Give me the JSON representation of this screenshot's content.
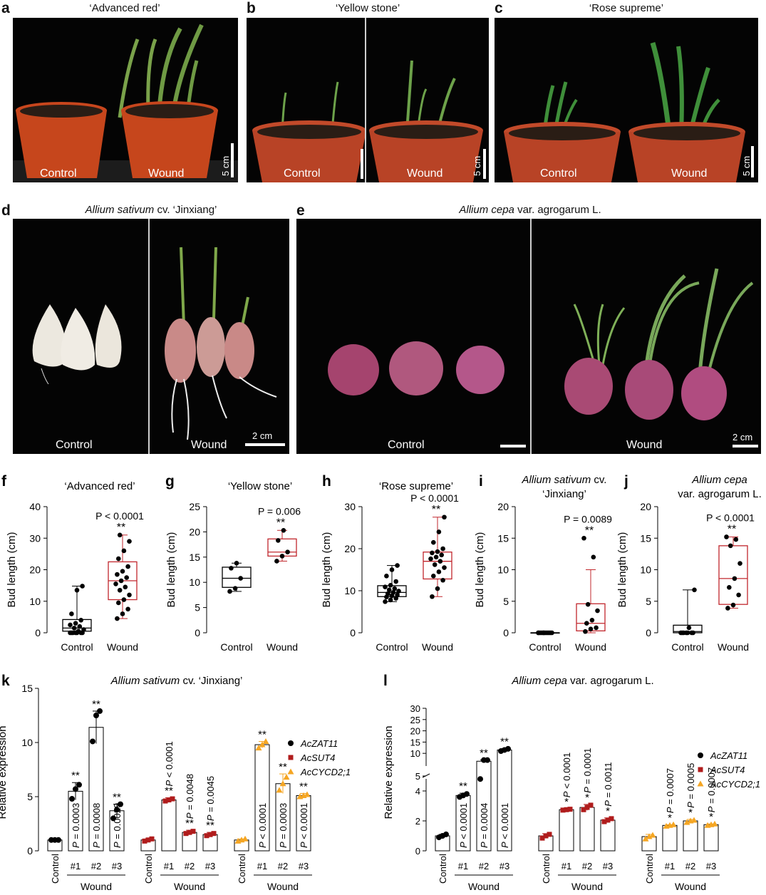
{
  "photos": {
    "a": {
      "letter": "a",
      "title": "‘Advanced red’",
      "labels": [
        "Control",
        "Wound"
      ],
      "scale": "5 cm"
    },
    "b": {
      "letter": "b",
      "title": "‘Yellow stone’",
      "labels": [
        "Control",
        "Wound"
      ],
      "scale": "5 cm"
    },
    "c": {
      "letter": "c",
      "title": "‘Rose supreme’",
      "labels": [
        "Control",
        "Wound"
      ],
      "scale": "5 cm"
    },
    "d": {
      "letter": "d",
      "title_italic": "Allium sativum",
      "title_rest": " cv. ‘Jinxiang’",
      "labels": [
        "Control",
        "Wound"
      ],
      "scale": "2 cm"
    },
    "e": {
      "letter": "e",
      "title_italic": "Allium cepa",
      "title_rest": " var. agrogarum L.",
      "labels": [
        "Control",
        "Wound"
      ],
      "scale": "2 cm"
    }
  },
  "colors": {
    "zat11": "#000000",
    "sut4": "#b01c1c",
    "cycd2": "#f5a623",
    "box_control": "#000000",
    "box_wound": "#c1272d"
  },
  "chart_data": [
    {
      "panel": "f",
      "type": "box",
      "title": "‘Advanced red’",
      "ylabel": "Bud length (cm)",
      "ylim": [
        0,
        40
      ],
      "yticks": [
        0,
        10,
        20,
        30,
        40
      ],
      "categories": [
        "Control",
        "Wound"
      ],
      "boxes": [
        {
          "q1": 0.5,
          "median": 1.5,
          "q3": 4.2,
          "min": 0,
          "max": 14.8
        },
        {
          "q1": 10.5,
          "median": 16.5,
          "q3": 22.5,
          "min": 4.5,
          "max": 31
        }
      ],
      "points": [
        [
          0,
          0,
          0,
          0,
          0,
          0,
          0,
          0.5,
          1,
          1.5,
          2,
          2.5,
          3,
          4,
          6,
          13.5,
          14.8
        ],
        [
          4.5,
          6,
          7.5,
          9.5,
          10.5,
          12,
          13.5,
          14.5,
          15.5,
          16.5,
          17.5,
          18.5,
          19.5,
          21,
          23.5,
          26,
          29,
          31
        ]
      ],
      "annotation": {
        "p": "P < 0.0001",
        "stars": "**"
      }
    },
    {
      "panel": "g",
      "type": "box",
      "title": "‘Yellow stone’",
      "ylabel": "Bud length (cm)",
      "ylim": [
        0,
        25
      ],
      "yticks": [
        0,
        5,
        10,
        15,
        20,
        25
      ],
      "categories": [
        "Control",
        "Wound"
      ],
      "boxes": [
        {
          "q1": 9,
          "median": 10.8,
          "q3": 13,
          "min": 8.2,
          "max": 13.8
        },
        {
          "q1": 15.2,
          "median": 16,
          "q3": 18.6,
          "min": 14.2,
          "max": 20.3
        }
      ],
      "points": [
        [
          8.2,
          8.8,
          10.8,
          12.8,
          13.8
        ],
        [
          14.2,
          15.2,
          16,
          18.3,
          20.3
        ]
      ],
      "annotation": {
        "p": "P = 0.006",
        "stars": "**"
      }
    },
    {
      "panel": "h",
      "type": "box",
      "title": "‘Rose supreme’",
      "ylabel": "Bud length (cm)",
      "ylim": [
        0,
        30
      ],
      "yticks": [
        0,
        10,
        20,
        30
      ],
      "categories": [
        "Control",
        "Wound"
      ],
      "boxes": [
        {
          "q1": 8.6,
          "median": 9.6,
          "q3": 11.2,
          "min": 7.4,
          "max": 16
        },
        {
          "q1": 12.8,
          "median": 17,
          "q3": 19.2,
          "min": 8.6,
          "max": 27.5
        }
      ],
      "points": [
        [
          7.4,
          7.8,
          8.2,
          8.5,
          8.8,
          9,
          9.3,
          9.6,
          9.9,
          10.2,
          10.5,
          10.9,
          11.3,
          12.2,
          13.5,
          15,
          16
        ],
        [
          8.6,
          10.5,
          12.5,
          13.5,
          14.5,
          15.5,
          16.2,
          17,
          17.6,
          18,
          18.5,
          19,
          19.3,
          20,
          21.5,
          24,
          27.5
        ]
      ],
      "annotation": {
        "p": "P < 0.0001",
        "stars": "**"
      }
    },
    {
      "panel": "i",
      "type": "box",
      "title_italic": "Allium sativum",
      "title_rest": " cv.",
      "title_line2": "‘Jinxiang’",
      "ylabel": "Bud length (cm)",
      "ylim": [
        0,
        20
      ],
      "yticks": [
        0,
        5,
        10,
        15,
        20
      ],
      "categories": [
        "Control",
        "Wound"
      ],
      "boxes": [
        {
          "q1": 0,
          "median": 0,
          "q3": 0,
          "min": 0,
          "max": 0
        },
        {
          "q1": 0.3,
          "median": 1.5,
          "q3": 4.6,
          "min": 0,
          "max": 10
        }
      ],
      "points": [
        [
          0,
          0,
          0,
          0,
          0,
          0,
          0,
          0,
          0,
          0,
          0,
          0,
          0
        ],
        [
          0.2,
          0.6,
          0.8,
          1.5,
          2,
          3.5,
          4.5,
          12,
          15
        ]
      ],
      "annotation": {
        "p": "P = 0.0089",
        "stars": "**"
      }
    },
    {
      "panel": "j",
      "type": "box",
      "title_italic": "Allium cepa",
      "title_line2": "var. agrogarum L.",
      "ylabel": "Bud length (cm)",
      "ylim": [
        0,
        20
      ],
      "yticks": [
        0,
        5,
        10,
        15,
        20
      ],
      "categories": [
        "Control",
        "Wound"
      ],
      "boxes": [
        {
          "q1": 0,
          "median": 0.2,
          "q3": 1.2,
          "min": 0,
          "max": 6.8
        },
        {
          "q1": 4.5,
          "median": 8.6,
          "q3": 13.8,
          "min": 3.9,
          "max": 15.2
        }
      ],
      "points": [
        [
          0,
          0,
          0,
          0,
          0,
          0,
          0,
          0.8,
          6.8
        ],
        [
          3.9,
          4.4,
          6,
          7.2,
          8.6,
          11,
          13.8,
          14.8,
          15.2
        ]
      ],
      "annotation": {
        "p": "P < 0.0001",
        "stars": "**"
      }
    },
    {
      "panel": "k",
      "type": "bar",
      "title_italic": "Allium sativum",
      "title_rest": " cv. ‘Jinxiang’",
      "ylabel": "Relative expression",
      "ylim": [
        0,
        15
      ],
      "yticks": [
        0,
        5,
        10,
        15
      ],
      "categories": [
        "Control",
        "#1",
        "#2",
        "#3"
      ],
      "group_label": "Wound",
      "series": [
        {
          "name": "AcZAT11",
          "color": "#000000",
          "shape": "circle",
          "values": [
            1,
            5.5,
            11.4,
            3.7
          ],
          "sd": [
            0.05,
            0.8,
            1.5,
            0.6
          ],
          "points": [
            [
              1,
              1,
              1
            ],
            [
              4.8,
              5.7,
              6.1
            ],
            [
              10.1,
              12.5,
              12.9
            ],
            [
              3.0,
              3.8,
              4.3
            ]
          ],
          "labels": [
            "",
            "P = 0.0003",
            "P = 0.0008",
            "P = 0.0029"
          ],
          "stars": [
            "",
            "**",
            "**",
            "**"
          ]
        },
        {
          "name": "AcSUT4",
          "color": "#b01c1c",
          "shape": "square",
          "values": [
            1,
            4.7,
            1.7,
            1.5
          ],
          "sd": [
            0.1,
            0.2,
            0.2,
            0.2
          ],
          "points": [
            [
              0.9,
              1,
              1.1
            ],
            [
              4.6,
              4.7,
              4.8
            ],
            [
              1.6,
              1.7,
              1.8
            ],
            [
              1.4,
              1.5,
              1.6
            ]
          ],
          "labels": [
            "",
            "P < 0.0001",
            "P = 0.0048",
            "P = 0.0045"
          ],
          "stars": [
            "",
            "**",
            "**",
            "**"
          ]
        },
        {
          "name": "AcCYCD2;1",
          "color": "#f5a623",
          "shape": "triangle",
          "values": [
            1,
            9.8,
            6.2,
            5.1
          ],
          "sd": [
            0.1,
            0.3,
            0.9,
            0.2
          ],
          "points": [
            [
              0.9,
              1,
              1.1
            ],
            [
              9.5,
              9.8,
              10.1
            ],
            [
              5.6,
              6.2,
              6.8
            ],
            [
              5.0,
              5.1,
              5.2
            ]
          ],
          "labels": [
            "",
            "P < 0.0001",
            "P = 0.0003",
            "P < 0.0001"
          ],
          "stars": [
            "",
            "**",
            "**",
            "**"
          ]
        }
      ]
    },
    {
      "panel": "l",
      "type": "bar",
      "title_italic": "Allium cepa",
      "title_rest": " var. agrogarum L.",
      "ylabel": "Relative expression",
      "ylim": [
        0,
        30
      ],
      "yticks": [
        0,
        2,
        4,
        5,
        10,
        15,
        20,
        25,
        30
      ],
      "axis_break": [
        5,
        5
      ],
      "categories": [
        "Control",
        "#1",
        "#2",
        "#3"
      ],
      "group_label": "Wound",
      "series": [
        {
          "name": "AcZAT11",
          "color": "#000000",
          "shape": "circle",
          "values": [
            1,
            3.7,
            6.5,
            11.5
          ],
          "sd": [
            0.1,
            0.15,
            0.6,
            0.6
          ],
          "points": [
            [
              0.9,
              1,
              1.1
            ],
            [
              3.6,
              3.7,
              3.8
            ],
            [
              4.8,
              7.0,
              7.0
            ],
            [
              11,
              11.5,
              12
            ]
          ],
          "labels": [
            "",
            "P < 0.0001",
            "P = 0.0004",
            "P < 0.0001"
          ],
          "stars": [
            "",
            "**",
            "**",
            "**"
          ]
        },
        {
          "name": "AcSUT4",
          "color": "#b01c1c",
          "shape": "square",
          "values": [
            1,
            2.75,
            2.9,
            2.05
          ],
          "sd": [
            0.15,
            0.05,
            0.2,
            0.15
          ],
          "points": [
            [
              0.85,
              1,
              1.1
            ],
            [
              2.72,
              2.75,
              2.78
            ],
            [
              2.75,
              2.9,
              3.05
            ],
            [
              1.95,
              2.05,
              2.15
            ]
          ],
          "labels": [
            "",
            "P < 0.0001",
            "P = 0.0001",
            "P = 0.0011"
          ],
          "stars": [
            "",
            "*",
            "*",
            "*"
          ]
        },
        {
          "name": "AcCYCD2;1",
          "color": "#f5a623",
          "shape": "triangle",
          "values": [
            0.95,
            1.7,
            2.0,
            1.75
          ],
          "sd": [
            0.15,
            0.05,
            0.1,
            0.05
          ],
          "points": [
            [
              0.8,
              0.95,
              1.05
            ],
            [
              1.65,
              1.7,
              1.75
            ],
            [
              1.9,
              2.0,
              2.05
            ],
            [
              1.7,
              1.75,
              1.8
            ]
          ],
          "labels": [
            "",
            "P = 0.0007",
            "P = 0.0005",
            "P = 0.0007"
          ],
          "stars": [
            "",
            "*",
            "*",
            "*"
          ]
        }
      ]
    }
  ]
}
